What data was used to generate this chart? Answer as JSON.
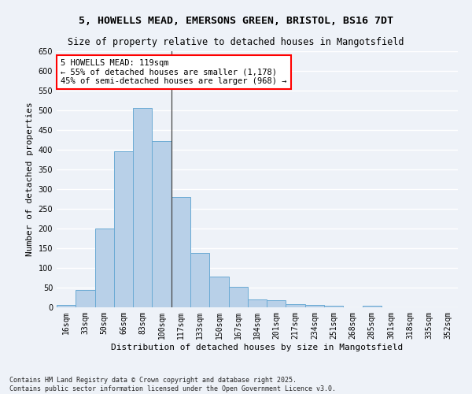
{
  "title1": "5, HOWELLS MEAD, EMERSONS GREEN, BRISTOL, BS16 7DT",
  "title2": "Size of property relative to detached houses in Mangotsfield",
  "xlabel": "Distribution of detached houses by size in Mangotsfield",
  "ylabel": "Number of detached properties",
  "bar_color": "#b8d0e8",
  "bar_edge_color": "#6aaad4",
  "background_color": "#eef2f8",
  "grid_color": "#ffffff",
  "categories": [
    "16sqm",
    "33sqm",
    "50sqm",
    "66sqm",
    "83sqm",
    "100sqm",
    "117sqm",
    "133sqm",
    "150sqm",
    "167sqm",
    "184sqm",
    "201sqm",
    "217sqm",
    "234sqm",
    "251sqm",
    "268sqm",
    "285sqm",
    "301sqm",
    "318sqm",
    "335sqm",
    "352sqm"
  ],
  "values": [
    7,
    45,
    200,
    397,
    507,
    422,
    280,
    138,
    79,
    52,
    20,
    18,
    9,
    7,
    4,
    0,
    4,
    0,
    0,
    0,
    0
  ],
  "vline_x_index": 5.5,
  "annotation_title": "5 HOWELLS MEAD: 119sqm",
  "annotation_line1": "← 55% of detached houses are smaller (1,178)",
  "annotation_line2": "45% of semi-detached houses are larger (968) →",
  "ylim": [
    0,
    650
  ],
  "yticks": [
    0,
    50,
    100,
    150,
    200,
    250,
    300,
    350,
    400,
    450,
    500,
    550,
    600,
    650
  ],
  "footer1": "Contains HM Land Registry data © Crown copyright and database right 2025.",
  "footer2": "Contains public sector information licensed under the Open Government Licence v3.0.",
  "title1_fontsize": 9.5,
  "title2_fontsize": 8.5,
  "axis_label_fontsize": 8,
  "tick_fontsize": 7,
  "annotation_fontsize": 7.5,
  "footer_fontsize": 6
}
